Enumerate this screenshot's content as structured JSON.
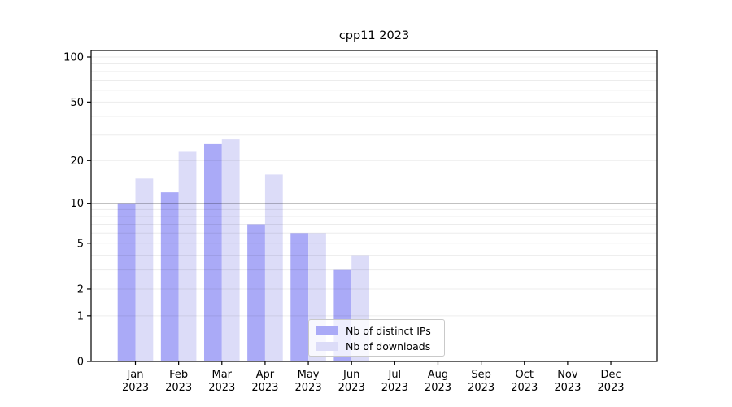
{
  "chart_data": {
    "type": "bar",
    "title": "cpp11 2023",
    "x_labels": [
      [
        "Jan",
        "2023"
      ],
      [
        "Feb",
        "2023"
      ],
      [
        "Mar",
        "2023"
      ],
      [
        "Apr",
        "2023"
      ],
      [
        "May",
        "2023"
      ],
      [
        "Jun",
        "2023"
      ],
      [
        "Jul",
        "2023"
      ],
      [
        "Aug",
        "2023"
      ],
      [
        "Sep",
        "2023"
      ],
      [
        "Oct",
        "2023"
      ],
      [
        "Nov",
        "2023"
      ],
      [
        "Dec",
        "2023"
      ]
    ],
    "series": [
      {
        "name": "Nb of distinct IPs",
        "color": "#aaaaf7",
        "values": [
          10,
          12,
          26,
          7,
          6,
          3,
          0,
          0,
          0,
          0,
          0,
          0
        ]
      },
      {
        "name": "Nb of downloads",
        "color": "#dcdcf8",
        "values": [
          15,
          23,
          28,
          16,
          6,
          4,
          0,
          0,
          0,
          0,
          0,
          0
        ]
      }
    ],
    "y_axis": {
      "scale": "log1p",
      "ticks": [
        0,
        1,
        2,
        5,
        10,
        20,
        50,
        100
      ],
      "gridlines": [
        1,
        2,
        3,
        4,
        5,
        6,
        7,
        8,
        9,
        10,
        20,
        30,
        40,
        50,
        60,
        70,
        80,
        90,
        100
      ],
      "emphasized_gridline": 10,
      "range": [
        0,
        110
      ]
    },
    "legend": {
      "position": "bottom-center"
    },
    "colors": {
      "grid": "rgba(0,0,0,0.075)",
      "grid_emphasis": "rgba(0,0,0,0.28)",
      "axis": "#000000",
      "background": "#ffffff"
    }
  }
}
